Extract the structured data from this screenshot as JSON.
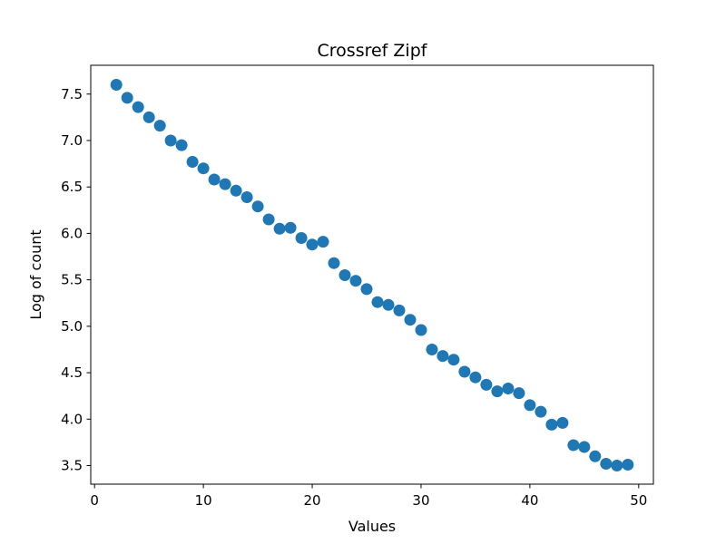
{
  "chart_data": {
    "type": "scatter",
    "title": "Crossref Zipf",
    "xlabel": "Values",
    "ylabel": "Log of count",
    "x": [
      2,
      3,
      4,
      5,
      6,
      7,
      8,
      9,
      10,
      11,
      12,
      13,
      14,
      15,
      16,
      17,
      18,
      19,
      20,
      21,
      22,
      23,
      24,
      25,
      26,
      27,
      28,
      29,
      30,
      31,
      32,
      33,
      34,
      35,
      36,
      37,
      38,
      39,
      40,
      41,
      42,
      43,
      44,
      45,
      46,
      47,
      48,
      49
    ],
    "y": [
      7.6,
      7.46,
      7.36,
      7.25,
      7.16,
      7.0,
      6.95,
      6.77,
      6.7,
      6.58,
      6.53,
      6.46,
      6.39,
      6.29,
      6.15,
      6.05,
      6.06,
      5.95,
      5.88,
      5.91,
      5.68,
      5.55,
      5.49,
      5.4,
      5.26,
      5.23,
      5.17,
      5.07,
      4.96,
      4.75,
      4.68,
      4.64,
      4.51,
      4.45,
      4.37,
      4.3,
      4.33,
      4.28,
      4.15,
      4.08,
      3.94,
      3.96,
      3.72,
      3.7,
      3.6,
      3.52,
      3.5,
      3.51
    ],
    "xlim": [
      -0.35,
      51.35
    ],
    "ylim": [
      3.3,
      7.81
    ],
    "xticks": [
      0,
      10,
      20,
      30,
      40,
      50
    ],
    "xtick_labels": [
      "0",
      "10",
      "20",
      "30",
      "40",
      "50"
    ],
    "yticks": [
      3.5,
      4.0,
      4.5,
      5.0,
      5.5,
      6.0,
      6.5,
      7.0,
      7.5
    ],
    "ytick_labels": [
      "3.5",
      "4.0",
      "4.5",
      "5.0",
      "5.5",
      "6.0",
      "6.5",
      "7.0",
      "7.5"
    ],
    "marker_color": "#1f77b4",
    "marker_radius": 6.5,
    "grid": false,
    "legend_position": "none"
  }
}
